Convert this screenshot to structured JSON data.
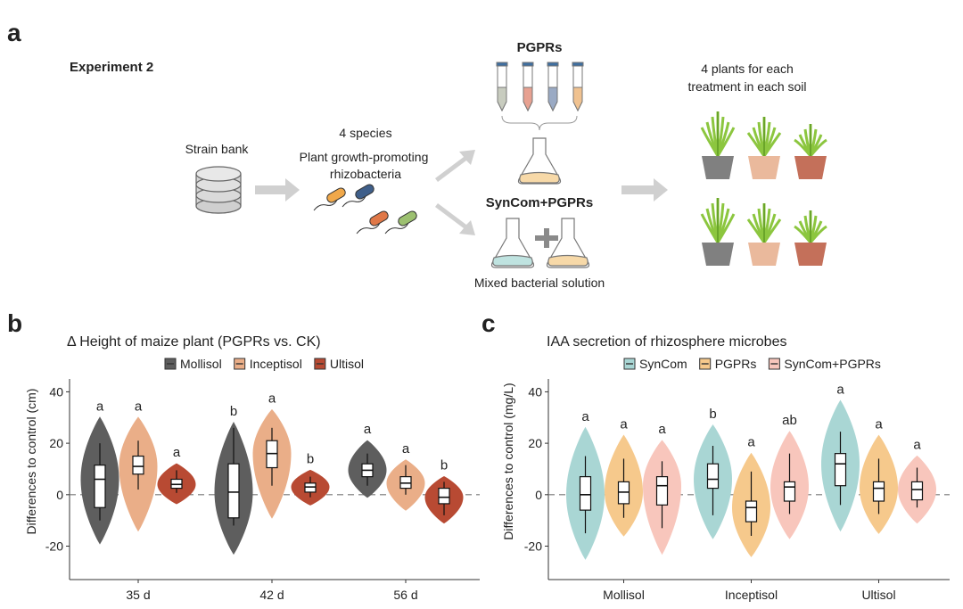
{
  "figure": {
    "panel_a": {
      "label": "a",
      "experiment": "Experiment 2",
      "strain_bank": "Strain bank",
      "species_count": "4 species",
      "species_desc_1": "Plant growth-promoting",
      "species_desc_2": "rhizobacteria",
      "pgprs": "PGPRs",
      "syncom_pgprs": "SynCom+PGPRs",
      "mixed": "Mixed bacterial solution",
      "plants_1": "4 plants for each",
      "plants_2": "treatment in each soil"
    }
  },
  "chart_data": [
    {
      "type": "violin",
      "panel_label": "b",
      "title": "Δ Height of maize plant (PGPRs vs. CK)",
      "y_label": "Differences to control (cm)",
      "categories": [
        "35 d",
        "42 d",
        "56 d"
      ],
      "ylim": [
        -33,
        45
      ],
      "yticks": [
        -20,
        0,
        20,
        40
      ],
      "reference_line": 0,
      "grid": false,
      "series": [
        {
          "name": "Mollisol",
          "color": "#5e5e5e",
          "violin_low": [
            -19,
            -23,
            -1
          ],
          "violin_high": [
            30,
            28,
            21
          ],
          "whisker_low": [
            -10,
            -12,
            3.5
          ],
          "q1": [
            -5,
            -9,
            7
          ],
          "median": [
            6,
            1,
            9.5
          ],
          "q3": [
            11.5,
            12,
            12
          ],
          "whisker_high": [
            20,
            26,
            16
          ],
          "letters": [
            "a",
            "b",
            "a"
          ]
        },
        {
          "name": "Inceptisol",
          "color": "#eaae88",
          "violin_low": [
            -14,
            -9,
            -6
          ],
          "violin_high": [
            30,
            33,
            13.5
          ],
          "whisker_low": [
            2,
            3.5,
            0
          ],
          "q1": [
            8,
            10.5,
            2.5
          ],
          "median": [
            11,
            16,
            4.5
          ],
          "q3": [
            15,
            21,
            7
          ],
          "whisker_high": [
            21,
            26,
            11.5
          ],
          "letters": [
            "a",
            "a",
            "a"
          ]
        },
        {
          "name": "Ultisol",
          "color": "#b84a33",
          "violin_low": [
            -3.5,
            -4,
            -11
          ],
          "violin_high": [
            12,
            9.5,
            7
          ],
          "whisker_low": [
            0.7,
            -1,
            -8
          ],
          "q1": [
            2.5,
            1,
            -3.5
          ],
          "median": [
            4,
            3,
            -1
          ],
          "q3": [
            6,
            4.5,
            2.5
          ],
          "whisker_high": [
            9.5,
            7,
            5
          ],
          "letters": [
            "a",
            "b",
            "b"
          ]
        }
      ]
    },
    {
      "type": "violin",
      "panel_label": "c",
      "title": "IAA secretion of rhizosphere microbes",
      "y_label": "Differences to control  (mg/L)",
      "categories": [
        "Mollisol",
        "Inceptisol",
        "Ultisol"
      ],
      "ylim": [
        -33,
        45
      ],
      "yticks": [
        -20,
        0,
        20,
        40
      ],
      "reference_line": 0,
      "grid": false,
      "series": [
        {
          "name": "SynCom",
          "color": "#a9d6d4",
          "violin_low": [
            -25,
            -17,
            -14
          ],
          "violin_high": [
            26,
            27,
            36.5
          ],
          "whisker_low": [
            -15,
            -8,
            -4
          ],
          "q1": [
            -6,
            2.5,
            3.5
          ],
          "median": [
            0,
            6,
            12
          ],
          "q3": [
            7,
            12,
            16
          ],
          "whisker_high": [
            15,
            19,
            24.5
          ],
          "letters": [
            "a",
            "b",
            "a"
          ]
        },
        {
          "name": "PGPRs",
          "color": "#f6c98c",
          "violin_low": [
            -16,
            -24,
            -15
          ],
          "violin_high": [
            23,
            16,
            23
          ],
          "whisker_low": [
            -9,
            -16,
            -7.5
          ],
          "q1": [
            -3.5,
            -10.5,
            -2.5
          ],
          "median": [
            1,
            -5,
            2.5
          ],
          "q3": [
            5,
            -2.5,
            5
          ],
          "whisker_high": [
            14,
            9,
            14
          ],
          "letters": [
            "a",
            "a",
            "a"
          ]
        },
        {
          "name": "SynCom+PGPRs",
          "color": "#f8c6bc",
          "violin_low": [
            -23,
            -17,
            -11
          ],
          "violin_high": [
            21,
            24.5,
            15
          ],
          "whisker_low": [
            -13,
            -7.5,
            -5
          ],
          "q1": [
            -4,
            -2.5,
            -2
          ],
          "median": [
            3.5,
            3,
            2
          ],
          "q3": [
            7,
            5,
            5
          ],
          "whisker_high": [
            13,
            16,
            10.5
          ],
          "letters": [
            "a",
            "ab",
            "a"
          ]
        }
      ]
    }
  ]
}
